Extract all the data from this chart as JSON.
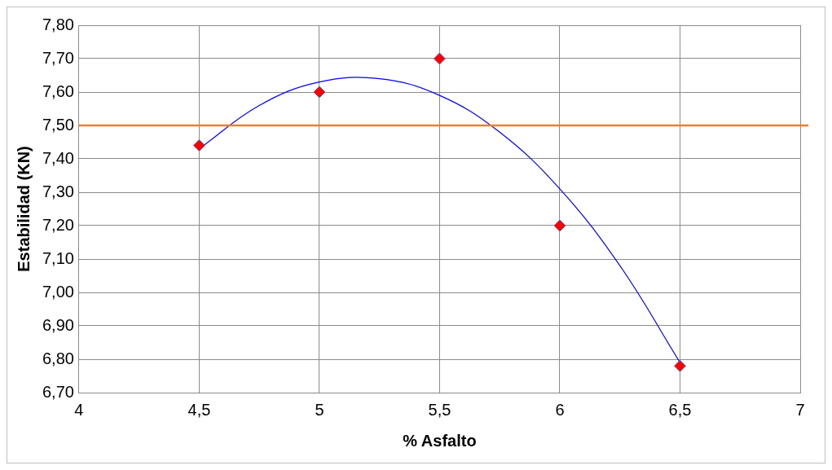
{
  "chart_data": {
    "type": "scatter",
    "xlabel": "% Asfalto",
    "ylabel": "Estabilidad (KN)",
    "xlim": [
      4,
      7
    ],
    "ylim": [
      6.7,
      7.8
    ],
    "xticks": [
      4,
      {
        "value": 4.5,
        "label": "4,5"
      },
      5,
      {
        "value": 5.5,
        "label": "5,5"
      },
      6,
      {
        "value": 6.5,
        "label": "6,5"
      },
      7
    ],
    "yticks": [
      {
        "value": 6.7,
        "label": "6,70"
      },
      {
        "value": 6.8,
        "label": "6,80"
      },
      {
        "value": 6.9,
        "label": "6,90"
      },
      {
        "value": 7.0,
        "label": "7,00"
      },
      {
        "value": 7.1,
        "label": "7,10"
      },
      {
        "value": 7.2,
        "label": "7,20"
      },
      {
        "value": 7.3,
        "label": "7,30"
      },
      {
        "value": 7.4,
        "label": "7,40"
      },
      {
        "value": 7.5,
        "label": "7,50"
      },
      {
        "value": 7.6,
        "label": "7,60"
      },
      {
        "value": 7.7,
        "label": "7,70"
      },
      {
        "value": 7.8,
        "label": "7,80"
      }
    ],
    "grid": true,
    "legend": false,
    "marker": "diamond",
    "series": [
      {
        "color": "#ff0000",
        "x": [
          4.5,
          5,
          5.5,
          6,
          6.5
        ],
        "values": [
          7.44,
          7.6,
          7.7,
          7.2,
          6.78
        ]
      },
      {
        "type": "line",
        "color": "#0000ff",
        "marker": "none",
        "x": [
          4.5,
          4.75,
          5,
          5.25,
          5.5,
          5.75,
          6,
          6.25,
          6.5
        ],
        "values": [
          7.43,
          7.56,
          7.63,
          7.64,
          7.59,
          7.48,
          7.31,
          7.08,
          6.79
        ]
      }
    ],
    "ref_lines": [
      {
        "axis": "y",
        "value": 7.5,
        "color": "#ed7d31"
      }
    ]
  }
}
